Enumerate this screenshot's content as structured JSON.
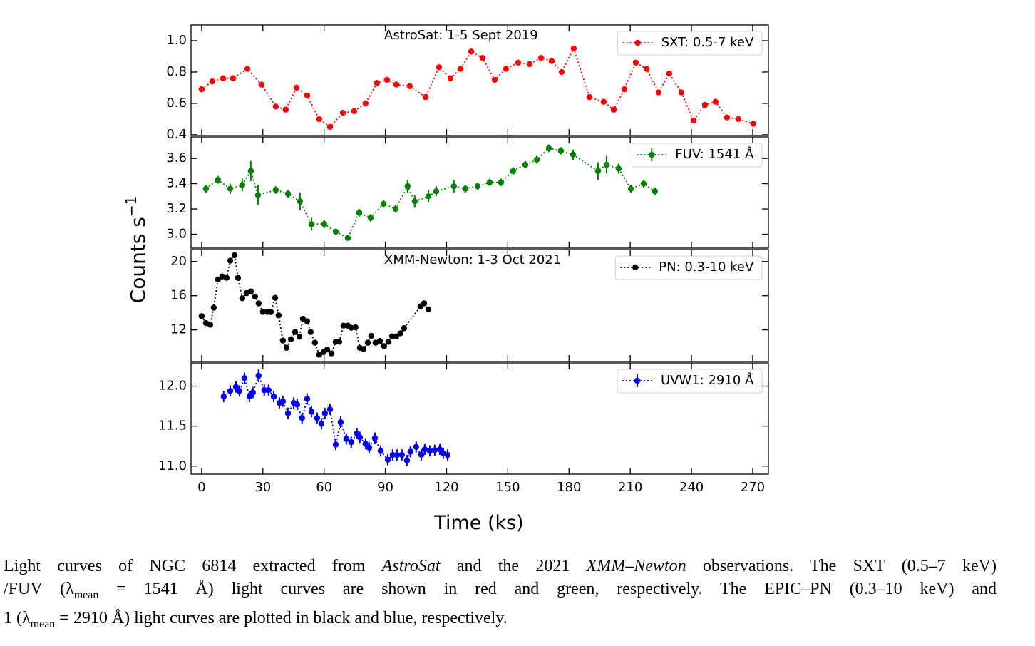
{
  "figure": {
    "xlabel": "Time (ks)",
    "ylabel": "Counts s",
    "ylabel_exponent": "−1"
  },
  "chart_data": [
    {
      "type": "line",
      "annotation": "AstroSat: 1-5 Sept 2019",
      "legend": "upper right",
      "ylim": [
        0.395,
        1.1
      ],
      "yticks": [
        0.4,
        0.6,
        0.8,
        {
          "value": 1.0,
          "label": "1.0"
        }
      ],
      "x": [
        0,
        5.2,
        10.5,
        15.4,
        22.4,
        29.3,
        36.3,
        41.2,
        46.5,
        51.7,
        57.6,
        62.9,
        69.2,
        74.7,
        80.3,
        85.9,
        90.8,
        95.4,
        102,
        109.7,
        116.3,
        121.9,
        126.8,
        132.1,
        137.6,
        143.6,
        149.1,
        155.1,
        160.7,
        166.3,
        171.5,
        176.4,
        182.3,
        190,
        197,
        201.9,
        207.1,
        212.7,
        218,
        223.9,
        229.1,
        235.1,
        241,
        246.6,
        251.8,
        257.4,
        263,
        270.3
      ],
      "series": [
        {
          "name": "SXT: 0.5-7 keV",
          "color": "#ff0000",
          "values": [
            0.69,
            0.74,
            0.76,
            0.76,
            0.82,
            0.72,
            0.58,
            0.56,
            0.7,
            0.65,
            0.5,
            0.45,
            0.54,
            0.55,
            0.6,
            0.73,
            0.75,
            0.72,
            0.71,
            0.64,
            0.83,
            0.76,
            0.82,
            0.93,
            0.89,
            0.75,
            0.82,
            0.86,
            0.85,
            0.89,
            0.87,
            0.8,
            0.95,
            0.64,
            0.61,
            0.56,
            0.69,
            0.86,
            0.82,
            0.67,
            0.79,
            0.67,
            0.49,
            0.59,
            0.61,
            0.51,
            0.5,
            0.47
          ]
        }
      ]
    },
    {
      "type": "line",
      "legend": "upper right",
      "ylim": [
        2.89,
        3.77
      ],
      "yticks": [
        {
          "value": 3.0,
          "label": "3.0"
        },
        3.2,
        3.4,
        3.6
      ],
      "x": [
        2.1,
        8,
        14,
        19.9,
        24.1,
        27.6,
        36.3,
        42.3,
        48.2,
        53.8,
        60.1,
        65.7,
        71.6,
        77.2,
        82.8,
        89.1,
        95,
        100.9,
        104.4,
        111.1,
        114.9,
        123.6,
        129.2,
        135.2,
        141.1,
        146.7,
        152.6,
        158.6,
        164.2,
        170.1,
        176,
        182,
        194.2,
        198.4,
        204.3,
        210.3,
        216.6,
        222.1
      ],
      "series": [
        {
          "name": "FUV: 1541 Å",
          "color": "#008000",
          "values": [
            3.36,
            3.43,
            3.36,
            3.39,
            3.5,
            3.31,
            3.35,
            3.32,
            3.26,
            3.08,
            3.08,
            3.02,
            2.97,
            3.17,
            3.13,
            3.24,
            3.2,
            3.38,
            3.26,
            3.3,
            3.34,
            3.38,
            3.36,
            3.38,
            3.41,
            3.41,
            3.5,
            3.55,
            3.59,
            3.68,
            3.66,
            3.63,
            3.5,
            3.55,
            3.52,
            3.36,
            3.4,
            3.34
          ],
          "errors": [
            0.03,
            0.03,
            0.04,
            0.05,
            0.08,
            0.08,
            0.03,
            0.03,
            0.07,
            0.05,
            0.03,
            0.02,
            0.02,
            0.03,
            0.03,
            0.03,
            0.03,
            0.05,
            0.05,
            0.05,
            0.04,
            0.05,
            0.03,
            0.03,
            0.03,
            0.03,
            0.03,
            0.03,
            0.03,
            0.03,
            0.03,
            0.04,
            0.07,
            0.07,
            0.04,
            0.03,
            0.03,
            0.03
          ]
        }
      ]
    },
    {
      "type": "line",
      "annotation": "XMM-Newton: 1-3 Oct 2021",
      "legend": "upper right",
      "ylim": [
        8.3,
        21.4
      ],
      "yticks": [
        12,
        16,
        20
      ],
      "x": [
        0,
        2.1,
        4.2,
        5.9,
        8,
        10.1,
        12.2,
        14,
        16.1,
        17.8,
        19.9,
        22,
        24.1,
        26.2,
        27.9,
        30,
        32.1,
        33.9,
        36,
        37.7,
        39.8,
        41.6,
        43.7,
        45.8,
        47.9,
        49.6,
        51.7,
        53.4,
        55.5,
        57.6,
        59.7,
        61.5,
        63.6,
        65.7,
        67.4,
        69.5,
        71.6,
        73.3,
        75.4,
        77.5,
        79.3,
        81.4,
        83.1,
        85.2,
        87.3,
        89.4,
        91.5,
        93.3,
        95.4,
        97.4,
        99.2,
        107.2,
        109,
        111.1
      ],
      "series": [
        {
          "name": "PN: 0.3-10 keV",
          "color": "#000000",
          "values": [
            13.6,
            12.8,
            12.6,
            14.6,
            17.9,
            18.25,
            18.1,
            20.1,
            20.75,
            18.1,
            15.7,
            16.3,
            16.5,
            15.9,
            15.1,
            14.1,
            14.1,
            14.1,
            15.75,
            13.7,
            10.75,
            9.9,
            10.9,
            11.75,
            11.2,
            13.3,
            13.0,
            11.75,
            10.5,
            9.1,
            9.4,
            9.7,
            9.25,
            10.6,
            10.6,
            12.5,
            12.5,
            12.25,
            12.3,
            9.9,
            9.75,
            10.5,
            11.3,
            10.5,
            10.7,
            10.1,
            10.6,
            11.25,
            11.25,
            11.6,
            12.2,
            14.75,
            15.1,
            14.4
          ]
        }
      ]
    },
    {
      "type": "line",
      "legend": "upper right",
      "xlim": [
        -5.2,
        277.7
      ],
      "xticks": [
        0,
        30,
        60,
        90,
        120,
        150,
        180,
        210,
        240,
        270
      ],
      "ylim": [
        10.9,
        12.29
      ],
      "yticks": [
        {
          "value": 11.0,
          "label": "11.0"
        },
        11.5,
        {
          "value": 12.0,
          "label": "12.0"
        }
      ],
      "x": [
        10.8,
        14,
        16.8,
        18.5,
        21,
        23.4,
        25.1,
        27.9,
        30.7,
        32.8,
        35.3,
        38.1,
        39.8,
        42.3,
        45.1,
        46.8,
        49.2,
        51.7,
        53.8,
        56.6,
        58.7,
        60.4,
        62.9,
        65.7,
        68.1,
        70.9,
        73.3,
        76.1,
        77.5,
        80.3,
        82.1,
        84.9,
        87.7,
        91.2,
        93.6,
        95.7,
        98.1,
        100.6,
        102.3,
        105.1,
        107.6,
        109.3,
        111.8,
        114.2,
        116.7,
        118.4,
        120.5
      ],
      "series": [
        {
          "name": "UVW1: 2910 Å",
          "color": "#0000ee",
          "values": [
            11.87,
            11.94,
            11.99,
            11.94,
            12.1,
            11.87,
            11.92,
            12.13,
            11.95,
            11.95,
            11.87,
            11.79,
            11.81,
            11.66,
            11.79,
            11.77,
            11.6,
            11.84,
            11.68,
            11.6,
            11.53,
            11.66,
            11.71,
            11.27,
            11.55,
            11.34,
            11.3,
            11.41,
            11.36,
            11.28,
            11.23,
            11.35,
            11.19,
            11.08,
            11.14,
            11.14,
            11.14,
            11.07,
            11.18,
            11.24,
            11.14,
            11.21,
            11.19,
            11.2,
            11.21,
            11.16,
            11.14
          ],
          "errors": [
            0.07,
            0.07,
            0.07,
            0.07,
            0.07,
            0.07,
            0.07,
            0.08,
            0.07,
            0.07,
            0.07,
            0.07,
            0.07,
            0.07,
            0.07,
            0.07,
            0.07,
            0.07,
            0.07,
            0.07,
            0.07,
            0.07,
            0.07,
            0.07,
            0.07,
            0.07,
            0.07,
            0.07,
            0.07,
            0.07,
            0.07,
            0.07,
            0.07,
            0.07,
            0.07,
            0.07,
            0.07,
            0.07,
            0.07,
            0.07,
            0.07,
            0.07,
            0.07,
            0.07,
            0.07,
            0.07,
            0.07
          ]
        }
      ]
    }
  ],
  "caption": {
    "lines": [
      [
        {
          "text": "Light curves of NGC 6814 extracted from "
        },
        {
          "text": "AstroSat",
          "style": "italic"
        },
        {
          "text": " and the 2021 "
        },
        {
          "text": "XMM–Newton",
          "style": "italic"
        },
        {
          "text": " observations. The SXT (0.5–7 keV)"
        }
      ],
      [
        {
          "text": "/FUV (λ"
        },
        {
          "text": "mean",
          "style": "sub"
        },
        {
          "text": " = 1541 Å) light curves are shown in red and green, respectively.  The EPIC–PN (0.3–10 keV) and"
        }
      ],
      [
        {
          "text": "1 (λ"
        },
        {
          "text": "mean",
          "style": "sub"
        },
        {
          "text": " = 2910 Å) light curves are plotted in black and blue, respectively."
        }
      ]
    ]
  }
}
